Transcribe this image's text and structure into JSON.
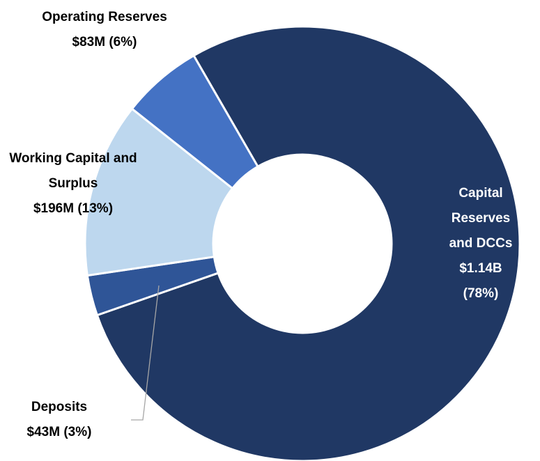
{
  "chart_data": {
    "type": "donut",
    "categories": [
      "Capital Reserves and DCCs",
      "Deposits",
      "Working Capital and Surplus",
      "Operating Reserves"
    ],
    "values": [
      78,
      3,
      13,
      6
    ],
    "value_labels": [
      "(78%)",
      "(3%)",
      "(13%)",
      "(6%)"
    ],
    "amount_labels": [
      "$1.14B",
      "$43M",
      "$196M",
      "$83M"
    ],
    "colors": [
      "#203864",
      "#2f5597",
      "#bdd7ee",
      "#4472c4"
    ]
  }
}
